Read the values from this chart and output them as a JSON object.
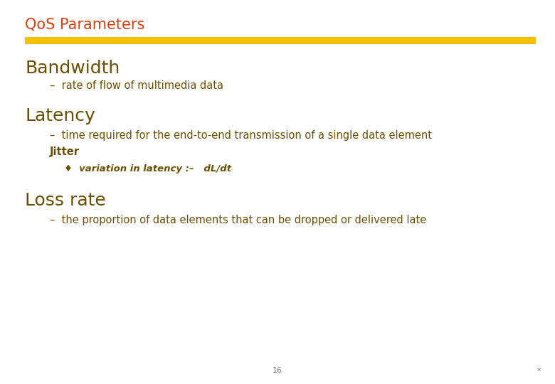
{
  "title": "QoS Parameters",
  "title_color": "#D94010",
  "bar_color": "#F5C000",
  "background_color": "#FFFFFF",
  "heading_color": "#6B4F00",
  "bullet_color": "#6B4F00",
  "heading1": "Bandwidth",
  "bullet1": "–  rate of flow of multimedia data",
  "heading2": "Latency",
  "bullet2": "–  time required for the end-to-end transmission of a single data element",
  "jitter_label": "Jitter",
  "jitter_bullet": "♦  variation in latency :–   dL/dt",
  "heading3": "Loss rate",
  "bullet3": "–  the proportion of data elements that can be dropped or delivered late",
  "page_number": "16",
  "footer_color": "#777777",
  "star": "*"
}
